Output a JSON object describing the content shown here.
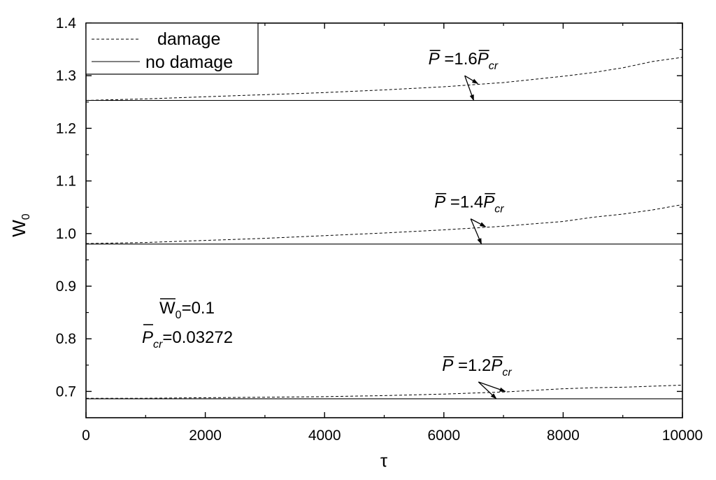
{
  "chart_data": {
    "type": "line",
    "title": "",
    "xlabel": "τ",
    "ylabel": {
      "main": "W",
      "sub": "0"
    },
    "xlim": [
      0,
      10000
    ],
    "ylim": [
      0.65,
      1.4
    ],
    "x_ticks": [
      0,
      2000,
      4000,
      6000,
      8000,
      10000
    ],
    "x_tick_labels": [
      "0",
      "2000",
      "4000",
      "6000",
      "8000",
      "10000"
    ],
    "y_ticks": [
      0.7,
      0.8,
      0.9,
      1.0,
      1.1,
      1.2,
      1.3,
      1.4
    ],
    "y_tick_labels": [
      "0.7",
      "0.8",
      "0.9",
      "1.0",
      "1.1",
      "1.2",
      "1.3",
      "1.4"
    ],
    "grid": false,
    "legend": {
      "position": "top-left",
      "entries": [
        {
          "label": "damage",
          "style": "dashed"
        },
        {
          "label": "no damage",
          "style": "solid"
        }
      ]
    },
    "series": [
      {
        "style": "dashed",
        "group": "1.6",
        "x": [
          0,
          1000,
          2000,
          3000,
          4000,
          5000,
          6000,
          7000,
          8000,
          8500,
          9000,
          9500,
          10000
        ],
        "values": [
          1.253,
          1.256,
          1.26,
          1.264,
          1.268,
          1.273,
          1.279,
          1.287,
          1.299,
          1.306,
          1.315,
          1.327,
          1.335
        ]
      },
      {
        "style": "solid",
        "group": "1.6",
        "x": [
          0,
          10000
        ],
        "values": [
          1.253,
          1.253
        ]
      },
      {
        "style": "dashed",
        "group": "1.4",
        "x": [
          0,
          1000,
          2000,
          3000,
          4000,
          5000,
          6000,
          7000,
          8000,
          8500,
          9000,
          9500,
          10000
        ],
        "values": [
          0.981,
          0.983,
          0.987,
          0.991,
          0.996,
          1.001,
          1.007,
          1.014,
          1.023,
          1.031,
          1.037,
          1.045,
          1.055
        ]
      },
      {
        "style": "solid",
        "group": "1.4",
        "x": [
          0,
          10000
        ],
        "values": [
          0.98,
          0.98
        ]
      },
      {
        "style": "dashed",
        "group": "1.2",
        "x": [
          0,
          1000,
          2000,
          3000,
          4000,
          5000,
          6000,
          7000,
          8000,
          8500,
          9000,
          9500,
          10000
        ],
        "values": [
          0.687,
          0.687,
          0.688,
          0.689,
          0.69,
          0.692,
          0.695,
          0.699,
          0.705,
          0.707,
          0.708,
          0.71,
          0.712
        ]
      },
      {
        "style": "solid",
        "group": "1.2",
        "x": [
          0,
          10000
        ],
        "values": [
          0.686,
          0.686
        ]
      }
    ],
    "annotations": [
      {
        "id": "p16",
        "p": "P",
        "eq": " =1.6",
        "p2": "P",
        "sub": "cr",
        "anchor": [
          6350,
          1.3
        ],
        "targets": [
          [
            6570,
            1.285
          ],
          [
            6500,
            1.253
          ]
        ]
      },
      {
        "id": "p14",
        "p": "P",
        "eq": " =1.4",
        "p2": "P",
        "sub": "cr",
        "anchor": [
          6450,
          1.028
        ],
        "targets": [
          [
            6700,
            1.013
          ],
          [
            6630,
            0.98
          ]
        ]
      },
      {
        "id": "p12",
        "p": "P",
        "eq": " =1.2",
        "p2": "P",
        "sub": "cr",
        "anchor": [
          6580,
          0.718
        ],
        "targets": [
          [
            7030,
            0.7
          ],
          [
            6880,
            0.686
          ]
        ]
      }
    ],
    "params": {
      "w0": {
        "main": "W",
        "sub": "0",
        "rest": "=0.1"
      },
      "pcr": {
        "main": "P",
        "sub": "cr",
        "rest": "=0.03272"
      }
    }
  }
}
